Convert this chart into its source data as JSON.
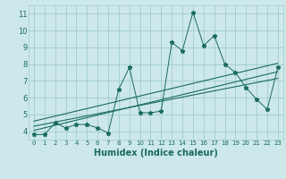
{
  "xlabel": "Humidex (Indice chaleur)",
  "bg_color": "#cde8ea",
  "grid_color": "#9fcdd0",
  "line_color": "#1a6b60",
  "xlim": [
    -0.5,
    23.5
  ],
  "ylim": [
    3.5,
    11.5
  ],
  "xticks": [
    0,
    1,
    2,
    3,
    4,
    5,
    6,
    7,
    8,
    9,
    10,
    11,
    12,
    13,
    14,
    15,
    16,
    17,
    18,
    19,
    20,
    21,
    22,
    23
  ],
  "yticks": [
    4,
    5,
    6,
    7,
    8,
    9,
    10,
    11
  ],
  "scatter_x": [
    0,
    1,
    2,
    3,
    4,
    5,
    6,
    7,
    8,
    9,
    10,
    11,
    12,
    13,
    14,
    15,
    16,
    17,
    18,
    19,
    20,
    21,
    22,
    23
  ],
  "scatter_y": [
    3.8,
    3.8,
    4.5,
    4.2,
    4.4,
    4.4,
    4.2,
    3.9,
    6.5,
    7.8,
    5.1,
    5.1,
    5.2,
    9.3,
    8.8,
    11.1,
    9.1,
    9.7,
    8.0,
    7.5,
    6.6,
    5.9,
    5.3,
    7.8
  ],
  "reg_line1": [
    [
      0,
      23
    ],
    [
      4.05,
      7.55
    ]
  ],
  "reg_line2": [
    [
      0,
      23
    ],
    [
      4.3,
      7.15
    ]
  ],
  "reg_line3": [
    [
      0,
      23
    ],
    [
      4.6,
      8.05
    ]
  ]
}
